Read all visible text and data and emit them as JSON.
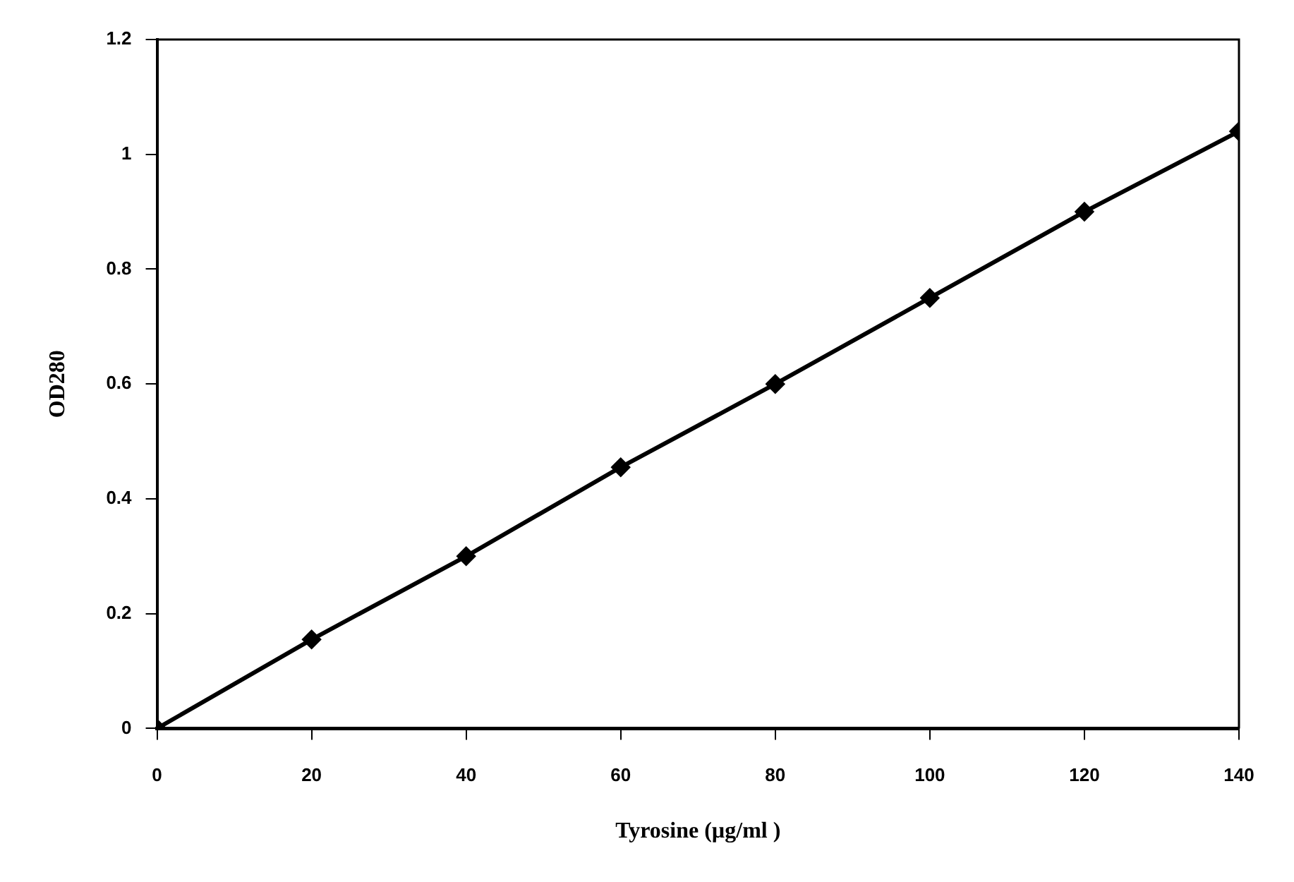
{
  "chart_data": {
    "type": "line",
    "xlabel": "Tyrosine (µg/ml )",
    "ylabel": "OD280",
    "x": [
      0,
      20,
      40,
      60,
      80,
      100,
      120,
      140
    ],
    "series": [
      {
        "color": "#000000",
        "values": [
          0,
          0.155,
          0.3,
          0.455,
          0.6,
          0.75,
          0.9,
          1.04
        ]
      }
    ],
    "xlim": [
      0,
      140
    ],
    "xticks": [
      0,
      20,
      40,
      60,
      80,
      100,
      120,
      140
    ],
    "ylim": [
      0,
      1.2
    ],
    "yticks": [
      0,
      0.2,
      0.4,
      0.6,
      0.8,
      1,
      1.2
    ],
    "marker": "diamond",
    "line_style": "solid",
    "grid": false,
    "legend": false
  }
}
